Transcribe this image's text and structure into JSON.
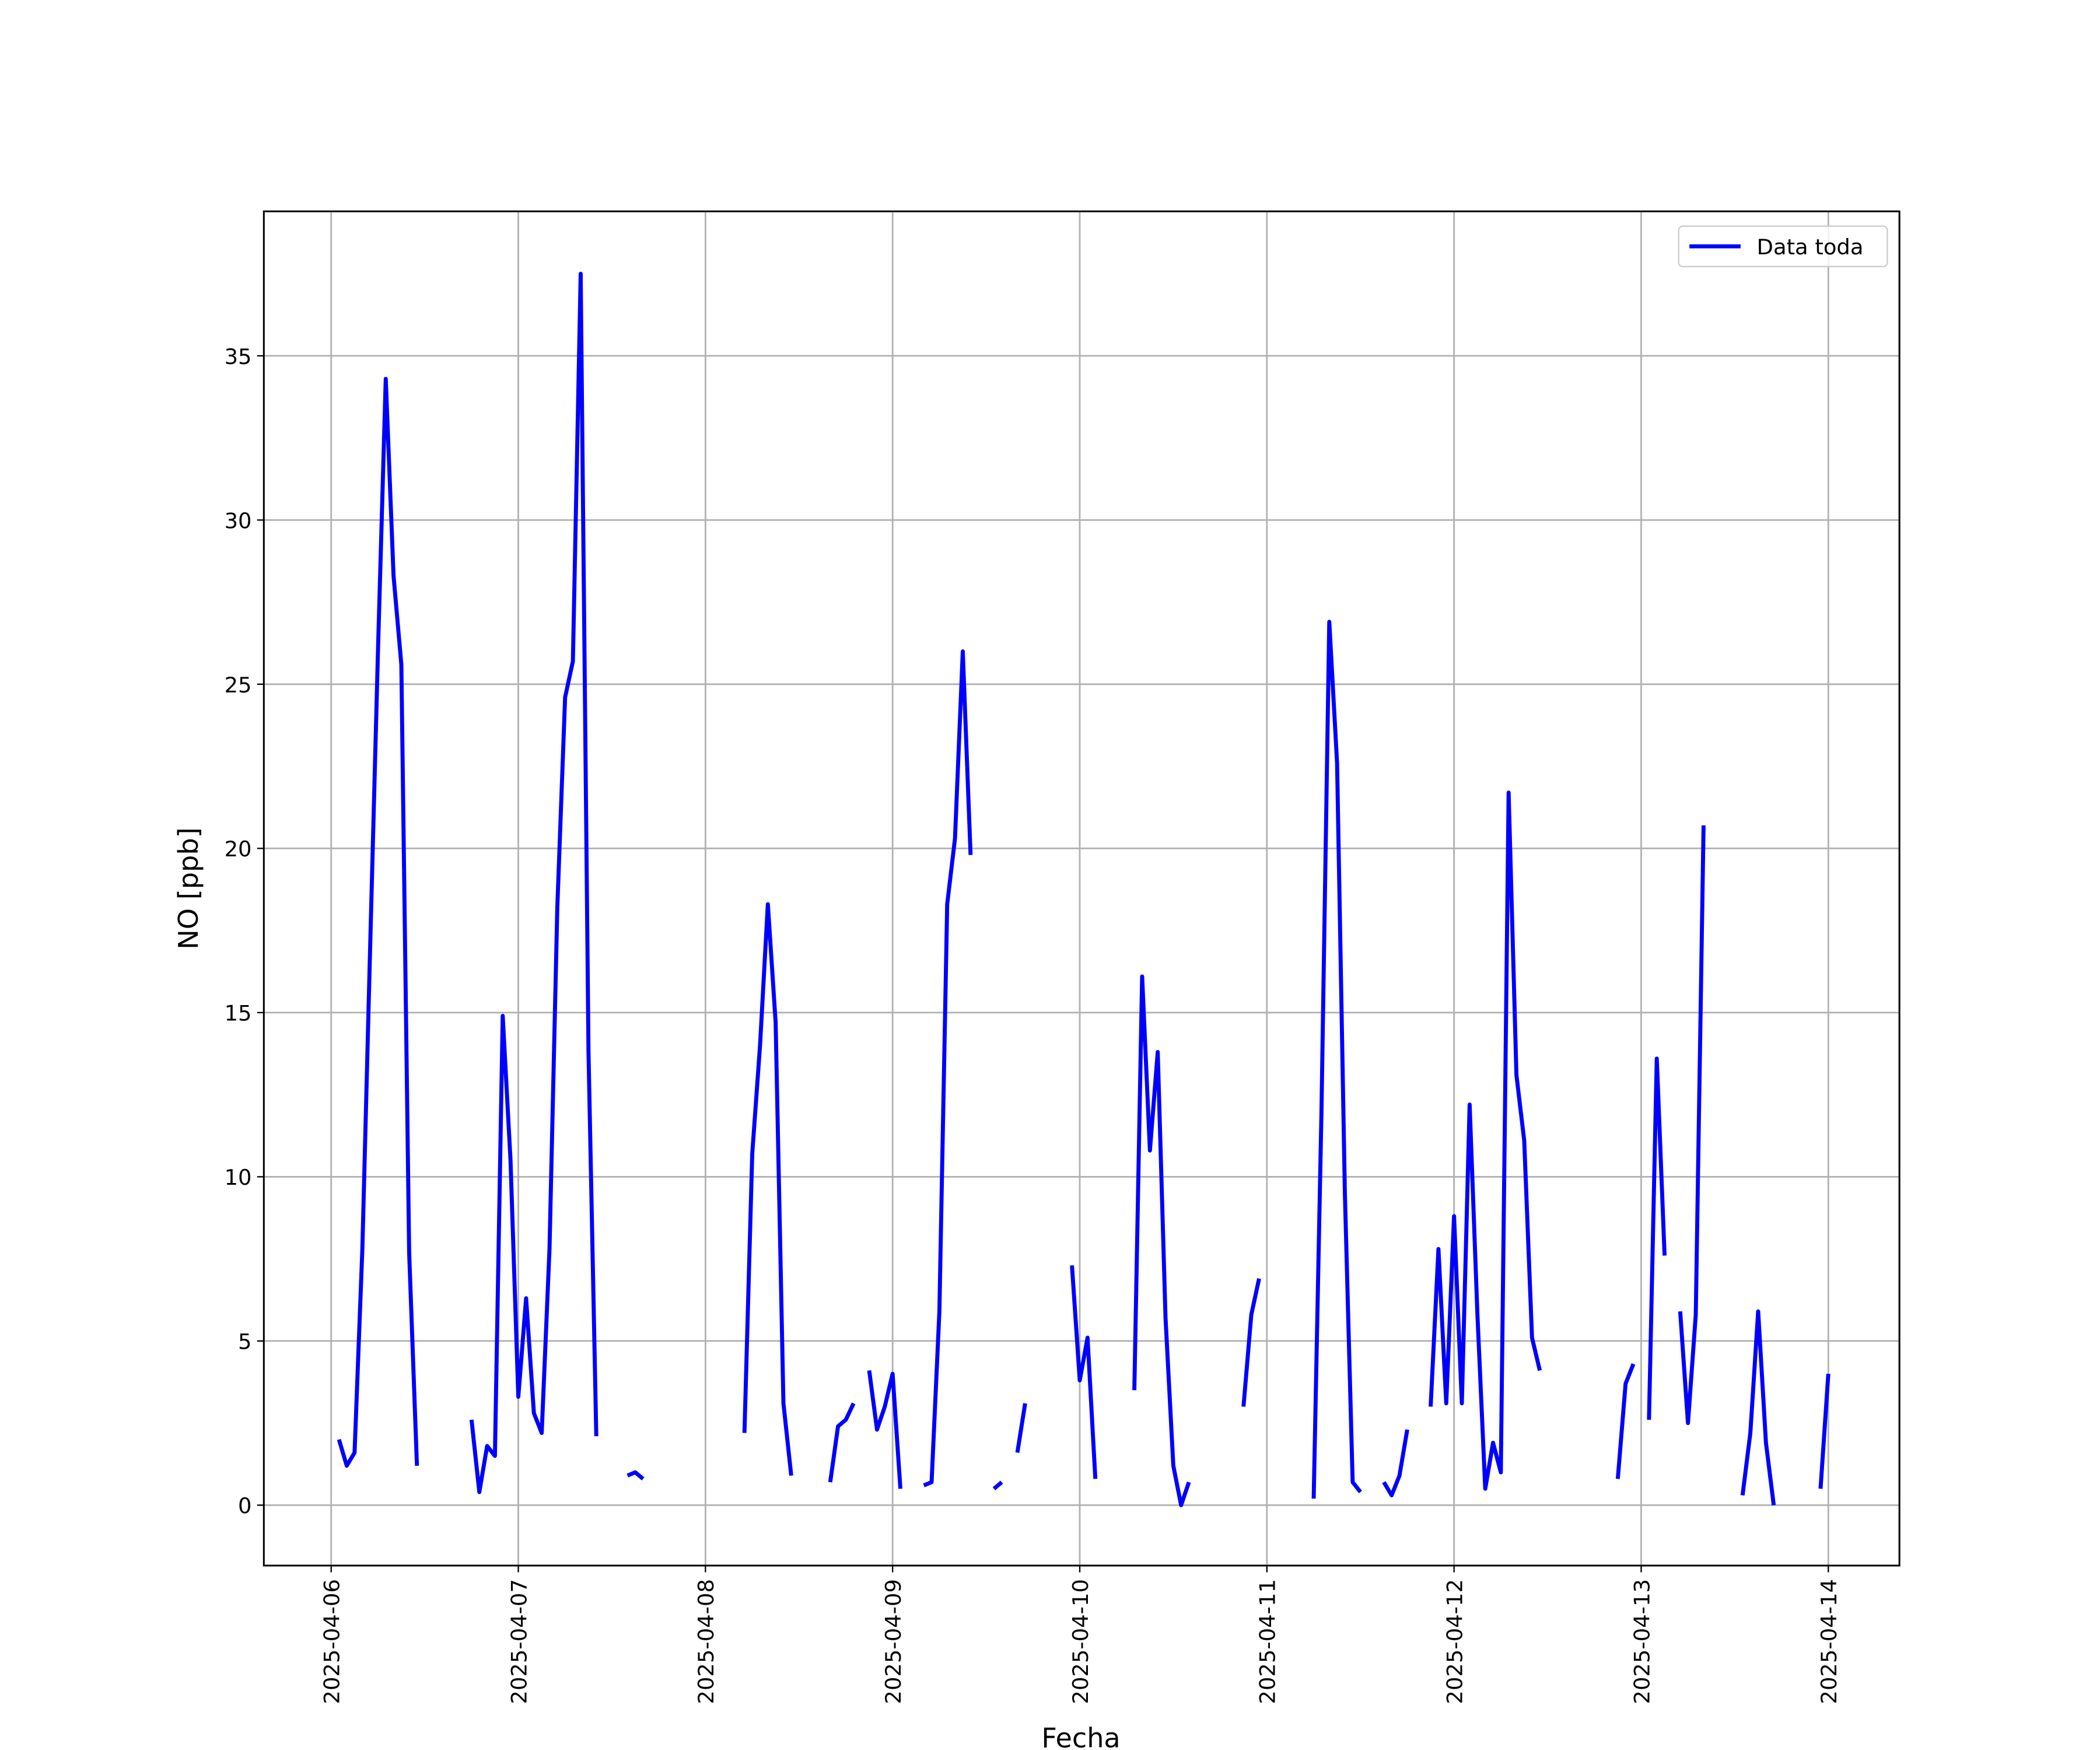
{
  "chart_data": {
    "type": "line",
    "xlabel": "Fecha",
    "ylabel": "NO [ppb]",
    "x": [
      "2025-04-06 00:00",
      "2025-04-06 01:00",
      "2025-04-06 02:00",
      "2025-04-06 03:00",
      "2025-04-06 04:00",
      "2025-04-06 05:00",
      "2025-04-06 06:00",
      "2025-04-06 07:00",
      "2025-04-06 08:00",
      "2025-04-06 09:00",
      "2025-04-06 10:00",
      "2025-04-06 11:00",
      "2025-04-06 12:00",
      "2025-04-06 13:00",
      "2025-04-06 14:00",
      "2025-04-06 15:00",
      "2025-04-06 16:00",
      "2025-04-06 17:00",
      "2025-04-06 18:00",
      "2025-04-06 19:00",
      "2025-04-06 20:00",
      "2025-04-06 21:00",
      "2025-04-06 22:00",
      "2025-04-06 23:00",
      "2025-04-07 00:00",
      "2025-04-07 01:00",
      "2025-04-07 02:00",
      "2025-04-07 03:00",
      "2025-04-07 04:00",
      "2025-04-07 05:00",
      "2025-04-07 06:00",
      "2025-04-07 07:00",
      "2025-04-07 08:00",
      "2025-04-07 09:00",
      "2025-04-07 10:00",
      "2025-04-07 11:00",
      "2025-04-07 12:00",
      "2025-04-07 13:00",
      "2025-04-07 14:00",
      "2025-04-07 15:00",
      "2025-04-07 16:00",
      "2025-04-07 17:00",
      "2025-04-07 18:00",
      "2025-04-07 19:00",
      "2025-04-07 20:00",
      "2025-04-07 21:00",
      "2025-04-07 22:00",
      "2025-04-07 23:00",
      "2025-04-08 00:00",
      "2025-04-08 01:00",
      "2025-04-08 02:00",
      "2025-04-08 03:00",
      "2025-04-08 04:00",
      "2025-04-08 05:00",
      "2025-04-08 06:00",
      "2025-04-08 07:00",
      "2025-04-08 08:00",
      "2025-04-08 09:00",
      "2025-04-08 10:00",
      "2025-04-08 11:00",
      "2025-04-08 12:00",
      "2025-04-08 13:00",
      "2025-04-08 14:00",
      "2025-04-08 15:00",
      "2025-04-08 16:00",
      "2025-04-08 17:00",
      "2025-04-08 18:00",
      "2025-04-08 19:00",
      "2025-04-08 20:00",
      "2025-04-08 21:00",
      "2025-04-08 22:00",
      "2025-04-08 23:00",
      "2025-04-09 00:00",
      "2025-04-09 01:00",
      "2025-04-09 02:00",
      "2025-04-09 03:00",
      "2025-04-09 04:00",
      "2025-04-09 05:00",
      "2025-04-09 06:00",
      "2025-04-09 07:00",
      "2025-04-09 08:00",
      "2025-04-09 09:00",
      "2025-04-09 10:00",
      "2025-04-09 11:00",
      "2025-04-09 12:00",
      "2025-04-09 13:00",
      "2025-04-09 14:00",
      "2025-04-09 15:00",
      "2025-04-09 16:00",
      "2025-04-09 17:00",
      "2025-04-09 18:00",
      "2025-04-09 19:00",
      "2025-04-09 20:00",
      "2025-04-09 21:00",
      "2025-04-09 22:00",
      "2025-04-09 23:00",
      "2025-04-10 00:00",
      "2025-04-10 01:00",
      "2025-04-10 02:00",
      "2025-04-10 03:00",
      "2025-04-10 04:00",
      "2025-04-10 05:00",
      "2025-04-10 06:00",
      "2025-04-10 07:00",
      "2025-04-10 08:00",
      "2025-04-10 09:00",
      "2025-04-10 10:00",
      "2025-04-10 11:00",
      "2025-04-10 12:00",
      "2025-04-10 13:00",
      "2025-04-10 14:00",
      "2025-04-10 15:00",
      "2025-04-10 16:00",
      "2025-04-10 17:00",
      "2025-04-10 18:00",
      "2025-04-10 19:00",
      "2025-04-10 20:00",
      "2025-04-10 21:00",
      "2025-04-10 22:00",
      "2025-04-10 23:00",
      "2025-04-11 00:00",
      "2025-04-11 01:00",
      "2025-04-11 02:00",
      "2025-04-11 03:00",
      "2025-04-11 04:00",
      "2025-04-11 05:00",
      "2025-04-11 06:00",
      "2025-04-11 07:00",
      "2025-04-11 08:00",
      "2025-04-11 09:00",
      "2025-04-11 10:00",
      "2025-04-11 11:00",
      "2025-04-11 12:00",
      "2025-04-11 13:00",
      "2025-04-11 14:00",
      "2025-04-11 15:00",
      "2025-04-11 16:00",
      "2025-04-11 17:00",
      "2025-04-11 18:00",
      "2025-04-11 19:00",
      "2025-04-11 20:00",
      "2025-04-11 21:00",
      "2025-04-11 22:00",
      "2025-04-11 23:00",
      "2025-04-12 00:00",
      "2025-04-12 01:00",
      "2025-04-12 02:00",
      "2025-04-12 03:00",
      "2025-04-12 04:00",
      "2025-04-12 05:00",
      "2025-04-12 06:00",
      "2025-04-12 07:00",
      "2025-04-12 08:00",
      "2025-04-12 09:00",
      "2025-04-12 10:00",
      "2025-04-12 11:00",
      "2025-04-12 12:00",
      "2025-04-12 13:00",
      "2025-04-12 14:00",
      "2025-04-12 15:00",
      "2025-04-12 16:00",
      "2025-04-12 17:00",
      "2025-04-12 18:00",
      "2025-04-12 19:00",
      "2025-04-12 20:00",
      "2025-04-12 21:00",
      "2025-04-12 22:00",
      "2025-04-12 23:00",
      "2025-04-13 00:00",
      "2025-04-13 01:00",
      "2025-04-13 02:00",
      "2025-04-13 03:00",
      "2025-04-13 04:00",
      "2025-04-13 05:00",
      "2025-04-13 06:00",
      "2025-04-13 07:00",
      "2025-04-13 08:00",
      "2025-04-13 09:00",
      "2025-04-13 10:00",
      "2025-04-13 11:00",
      "2025-04-13 12:00",
      "2025-04-13 13:00",
      "2025-04-13 14:00",
      "2025-04-13 15:00",
      "2025-04-13 16:00",
      "2025-04-13 17:00",
      "2025-04-13 18:00",
      "2025-04-13 19:00",
      "2025-04-13 20:00",
      "2025-04-13 21:00",
      "2025-04-13 22:00",
      "2025-04-13 23:00",
      "2025-04-14 00:00"
    ],
    "series": [
      {
        "name": "Data toda",
        "color": "#0000ff",
        "values": [
          null,
          2.0,
          1.2,
          1.6,
          7.8,
          17,
          26,
          34.3,
          28.3,
          25.6,
          7.7,
          1.2,
          null,
          null,
          null,
          null,
          null,
          null,
          2.6,
          0.4,
          1.8,
          1.5,
          14.9,
          10.5,
          3.3,
          6.3,
          2.8,
          2.2,
          7.8,
          18.2,
          24.6,
          25.7,
          37.5,
          13.8,
          2.1,
          null,
          null,
          null,
          0.9,
          1.0,
          0.8,
          null,
          null,
          null,
          null,
          null,
          null,
          null,
          null,
          null,
          null,
          null,
          null,
          2.2,
          10.7,
          14,
          18.3,
          14.7,
          3.1,
          0.9,
          null,
          null,
          null,
          null,
          0.7,
          2.4,
          2.6,
          3.1,
          null,
          4.1,
          2.3,
          3.0,
          4.0,
          0.5,
          null,
          null,
          0.6,
          0.7,
          5.9,
          18.3,
          20.3,
          26,
          19.8,
          null,
          null,
          0.5,
          0.7,
          null,
          1.6,
          3.1,
          null,
          null,
          null,
          null,
          null,
          7.3,
          3.8,
          5.1,
          0.8,
          null,
          null,
          null,
          null,
          3.5,
          16.1,
          10.8,
          13.8,
          5.7,
          1.2,
          0,
          0.7,
          null,
          null,
          null,
          null,
          null,
          null,
          3.0,
          5.8,
          6.9,
          null,
          null,
          null,
          null,
          null,
          null,
          0.2,
          12,
          26.9,
          22.6,
          9.5,
          0.7,
          0.4,
          null,
          null,
          0.7,
          0.3,
          0.9,
          2.3,
          null,
          null,
          3.0,
          7.8,
          3.1,
          8.8,
          3.1,
          12.2,
          5.8,
          0.5,
          1.9,
          1.0,
          21.7,
          13.1,
          11.1,
          5.1,
          4.1,
          null,
          null,
          null,
          null,
          null,
          null,
          null,
          null,
          null,
          0.8,
          3.7,
          4.3,
          null,
          2.6,
          13.6,
          7.6,
          null,
          5.9,
          2.5,
          5.8,
          20.7,
          null,
          null,
          null,
          null,
          0.3,
          2.2,
          5.9,
          1.9,
          0,
          null,
          null,
          null,
          null,
          null,
          0.5,
          4.0
        ]
      }
    ],
    "xlim": [
      "2025-04-05 15:22",
      "2025-04-14 09:07"
    ],
    "xticks": [
      "2025-04-06",
      "2025-04-07",
      "2025-04-08",
      "2025-04-09",
      "2025-04-10",
      "2025-04-11",
      "2025-04-12",
      "2025-04-13",
      "2025-04-14"
    ],
    "ylim": [
      -1.84,
      39.4
    ],
    "yticks": [
      0,
      5,
      10,
      15,
      20,
      25,
      30,
      35
    ],
    "grid": true,
    "legend": "upper right"
  }
}
